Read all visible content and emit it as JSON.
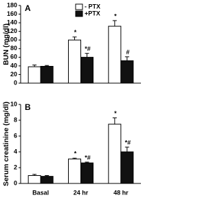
{
  "chart_data": [
    {
      "type": "bar",
      "panel_label": "A",
      "ylabel": "BUN (mg/dl)",
      "ylim": [
        0,
        180
      ],
      "yticks": [
        0,
        20,
        40,
        60,
        80,
        100,
        120,
        140,
        160,
        180
      ],
      "legend": "top",
      "series": [
        {
          "name": "- PTX",
          "color": "#ffffff",
          "values": [
            38,
            100,
            132
          ],
          "errors": [
            4,
            7,
            13
          ],
          "annotations": [
            null,
            "*",
            "*"
          ]
        },
        {
          "name": "+PTX",
          "color": "#111111",
          "values": [
            39,
            60,
            52
          ],
          "errors": [
            2,
            9,
            9
          ],
          "annotations": [
            null,
            "*#",
            "#"
          ]
        }
      ]
    },
    {
      "type": "bar",
      "panel_label": "B",
      "ylabel": "Serum creatinine (mg/dl)",
      "categories": [
        "Basal",
        "24 hr",
        "48 hr"
      ],
      "ylim": [
        0,
        10
      ],
      "yticks": [
        0,
        2,
        4,
        6,
        8,
        10
      ],
      "series": [
        {
          "name": "- PTX",
          "color": "#ffffff",
          "values": [
            1.0,
            3.1,
            7.5
          ],
          "errors": [
            0.15,
            0.1,
            0.8
          ],
          "annotations": [
            null,
            "*",
            "*"
          ]
        },
        {
          "name": "+PTX",
          "color": "#111111",
          "values": [
            0.9,
            2.6,
            4.0
          ],
          "errors": [
            0.1,
            0.1,
            0.6
          ],
          "annotations": [
            null,
            "*#",
            "*#"
          ]
        }
      ]
    }
  ]
}
